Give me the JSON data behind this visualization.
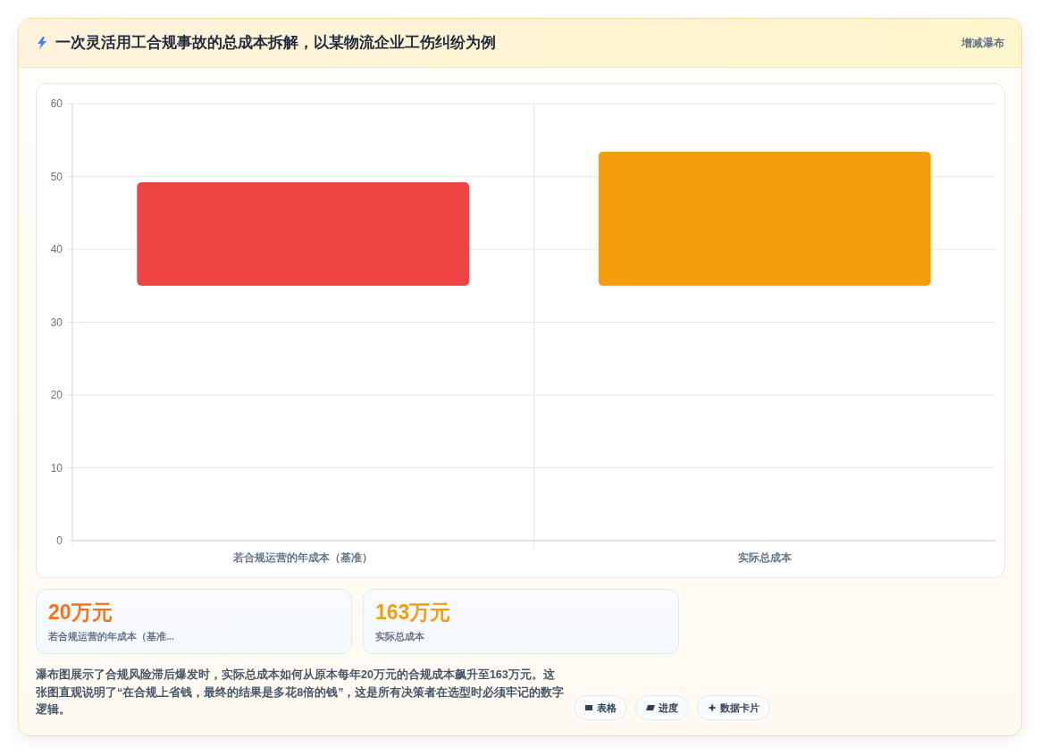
{
  "chart_data": {
    "type": "bar",
    "title": "一次灵活用工合规事故的总成本拆解，以某物流企业工伤纠纷为例",
    "categories": [
      "若合规运营的年成本（基准）",
      "实际总成本"
    ],
    "values": [
      14.2,
      18.4
    ],
    "base": [
      35,
      35
    ],
    "colors": [
      "#ef4444",
      "#f59e0b"
    ],
    "ylim": [
      0,
      60
    ],
    "yticks": [
      0,
      10,
      20,
      30,
      40,
      50,
      60
    ],
    "grid": true,
    "annotations": [
      "增减瀑布",
      "20万元",
      "若合规运营的年成本（基准...",
      "163万元",
      "实际总成本",
      "瀑布图展示了合规风险滞后爆发时，实际总成本如何从原本每年20万元的合规成本飙升至163万元。这张图直观说明了“在合规上省钱，最终的结果是多花8倍的钱”，这是所有决策者在选型时必须牢记的数字逻辑。",
      "表格",
      "进度",
      "数据卡片"
    ]
  }
}
